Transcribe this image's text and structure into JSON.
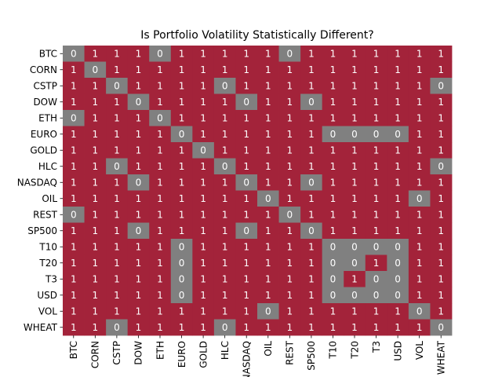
{
  "chart_data": {
    "type": "heatmap",
    "title": "Is Portfolio Volatility Statistically Different?",
    "xlabel": "",
    "ylabel": "",
    "rows": [
      "BTC",
      "CORN",
      "CSTP",
      "DOW",
      "ETH",
      "EURO",
      "GOLD",
      "HLC",
      "NASDAQ",
      "OIL",
      "REST",
      "SP500",
      "T10",
      "T20",
      "T3",
      "USD",
      "VOL",
      "WHEAT"
    ],
    "columns": [
      "BTC",
      "CORN",
      "CSTP",
      "DOW",
      "ETH",
      "EURO",
      "GOLD",
      "HLC",
      "NASDAQ",
      "OIL",
      "REST",
      "SP500",
      "T10",
      "T20",
      "T3",
      "USD",
      "VOL",
      "WHEAT"
    ],
    "values": [
      [
        0,
        1,
        1,
        1,
        0,
        1,
        1,
        1,
        1,
        1,
        0,
        1,
        1,
        1,
        1,
        1,
        1,
        1
      ],
      [
        1,
        0,
        1,
        1,
        1,
        1,
        1,
        1,
        1,
        1,
        1,
        1,
        1,
        1,
        1,
        1,
        1,
        1
      ],
      [
        1,
        1,
        0,
        1,
        1,
        1,
        1,
        0,
        1,
        1,
        1,
        1,
        1,
        1,
        1,
        1,
        1,
        0
      ],
      [
        1,
        1,
        1,
        0,
        1,
        1,
        1,
        1,
        0,
        1,
        1,
        0,
        1,
        1,
        1,
        1,
        1,
        1
      ],
      [
        0,
        1,
        1,
        1,
        0,
        1,
        1,
        1,
        1,
        1,
        1,
        1,
        1,
        1,
        1,
        1,
        1,
        1
      ],
      [
        1,
        1,
        1,
        1,
        1,
        0,
        1,
        1,
        1,
        1,
        1,
        1,
        0,
        0,
        0,
        0,
        1,
        1
      ],
      [
        1,
        1,
        1,
        1,
        1,
        1,
        0,
        1,
        1,
        1,
        1,
        1,
        1,
        1,
        1,
        1,
        1,
        1
      ],
      [
        1,
        1,
        0,
        1,
        1,
        1,
        1,
        0,
        1,
        1,
        1,
        1,
        1,
        1,
        1,
        1,
        1,
        0
      ],
      [
        1,
        1,
        1,
        0,
        1,
        1,
        1,
        1,
        0,
        1,
        1,
        0,
        1,
        1,
        1,
        1,
        1,
        1
      ],
      [
        1,
        1,
        1,
        1,
        1,
        1,
        1,
        1,
        1,
        0,
        1,
        1,
        1,
        1,
        1,
        1,
        0,
        1
      ],
      [
        0,
        1,
        1,
        1,
        1,
        1,
        1,
        1,
        1,
        1,
        0,
        1,
        1,
        1,
        1,
        1,
        1,
        1
      ],
      [
        1,
        1,
        1,
        0,
        1,
        1,
        1,
        1,
        0,
        1,
        1,
        0,
        1,
        1,
        1,
        1,
        1,
        1
      ],
      [
        1,
        1,
        1,
        1,
        1,
        0,
        1,
        1,
        1,
        1,
        1,
        1,
        0,
        0,
        0,
        0,
        1,
        1
      ],
      [
        1,
        1,
        1,
        1,
        1,
        0,
        1,
        1,
        1,
        1,
        1,
        1,
        0,
        0,
        1,
        0,
        1,
        1
      ],
      [
        1,
        1,
        1,
        1,
        1,
        0,
        1,
        1,
        1,
        1,
        1,
        1,
        0,
        1,
        0,
        0,
        1,
        1
      ],
      [
        1,
        1,
        1,
        1,
        1,
        0,
        1,
        1,
        1,
        1,
        1,
        1,
        0,
        0,
        0,
        0,
        1,
        1
      ],
      [
        1,
        1,
        1,
        1,
        1,
        1,
        1,
        1,
        1,
        0,
        1,
        1,
        1,
        1,
        1,
        1,
        0,
        1
      ],
      [
        1,
        1,
        0,
        1,
        1,
        1,
        1,
        0,
        1,
        1,
        1,
        1,
        1,
        1,
        1,
        1,
        1,
        0
      ]
    ],
    "colors": {
      "0": "#808080",
      "1": "#a3233a"
    },
    "legend": "none",
    "grid": false
  }
}
